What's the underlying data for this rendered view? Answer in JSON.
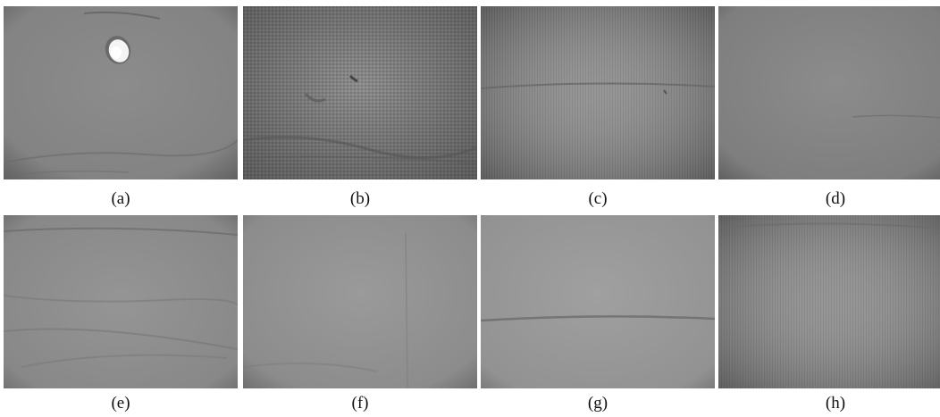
{
  "figure": {
    "panels": [
      {
        "id": "a",
        "caption": "(a)"
      },
      {
        "id": "b",
        "caption": "(b)"
      },
      {
        "id": "c",
        "caption": "(c)"
      },
      {
        "id": "d",
        "caption": "(d)"
      },
      {
        "id": "e",
        "caption": "(e)"
      },
      {
        "id": "f",
        "caption": "(f)"
      },
      {
        "id": "g",
        "caption": "(g)"
      },
      {
        "id": "h",
        "caption": "(h)"
      }
    ]
  }
}
